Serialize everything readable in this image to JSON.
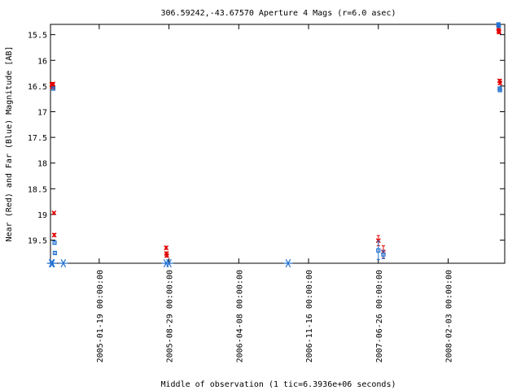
{
  "chart_data": {
    "type": "scatter",
    "title": "306.59242,-43.67570   Aperture 4 Mags (r=6.0 asec)",
    "xlabel": "Middle of observation (1 tic=6.3936e+06 seconds)",
    "ylabel": "Near (Red) and Far (Blue) Magnitude [AB]",
    "y_inverted": true,
    "ylim": [
      19.95,
      15.3
    ],
    "xlim": [
      "2004-08-17",
      "2008-08-01"
    ],
    "y_ticks": [
      "15.5",
      "16",
      "16.5",
      "17",
      "17.5",
      "18",
      "18.5",
      "19",
      "19.5"
    ],
    "x_ticks": [
      {
        "date": "2005-01-19",
        "label": "2005-01-19 00:00:00"
      },
      {
        "date": "2005-08-29",
        "label": "2005-08-29 00:00:00"
      },
      {
        "date": "2006-04-08",
        "label": "2006-04-08 00:00:00"
      },
      {
        "date": "2006-11-16",
        "label": "2006-11-16 00:00:00"
      },
      {
        "date": "2007-06-26",
        "label": "2007-06-26 00:00:00"
      },
      {
        "date": "2008-02-03",
        "label": "2008-02-03 00:00:00"
      }
    ],
    "grid": false,
    "series": [
      {
        "color": "#e00000",
        "marker": "x",
        "points": [
          {
            "x": "2004-08-21",
            "y": 16.47,
            "err": 0.03
          },
          {
            "x": "2004-08-22",
            "y": 16.5,
            "err": 0.03
          },
          {
            "x": "2004-08-23",
            "y": 16.52,
            "err": 0.03
          },
          {
            "x": "2004-08-24",
            "y": 16.48,
            "err": 0.03
          },
          {
            "x": "2004-08-25",
            "y": 16.46,
            "err": 0.03
          },
          {
            "x": "2004-08-28",
            "y": 18.97,
            "err": 0.02
          },
          {
            "x": "2004-08-29",
            "y": 19.4,
            "err": 0.03
          },
          {
            "x": "2005-08-20",
            "y": 19.65,
            "err": 0.03
          },
          {
            "x": "2005-08-21",
            "y": 19.76,
            "err": 0.03
          },
          {
            "x": "2005-08-22",
            "y": 19.8,
            "err": 0.03
          },
          {
            "x": "2007-06-26",
            "y": 19.51,
            "err": 0.1
          },
          {
            "x": "2007-07-12",
            "y": 19.73,
            "err": 0.12
          },
          {
            "x": "2008-07-12",
            "y": 15.38,
            "err": 0.03
          },
          {
            "x": "2008-07-13",
            "y": 15.42,
            "err": 0.03
          },
          {
            "x": "2008-07-14",
            "y": 15.45,
            "err": 0.03
          },
          {
            "x": "2008-07-16",
            "y": 16.4,
            "err": 0.03
          },
          {
            "x": "2008-07-17",
            "y": 16.44,
            "err": 0.03
          }
        ]
      },
      {
        "color": "#2070d0",
        "marker": "square",
        "points": [
          {
            "x": "2004-08-26",
            "y": 16.55,
            "err": 0.03
          },
          {
            "x": "2004-08-30",
            "y": 19.55,
            "err": 0.03
          },
          {
            "x": "2004-08-31",
            "y": 19.75,
            "err": 0.03
          },
          {
            "x": "2007-06-26",
            "y": 19.7,
            "err": 0.18
          },
          {
            "x": "2007-07-12",
            "y": 19.78,
            "err": 0.08
          },
          {
            "x": "2008-07-12",
            "y": 15.3,
            "err": 0.02
          },
          {
            "x": "2008-07-13",
            "y": 15.33,
            "err": 0.02
          },
          {
            "x": "2008-07-16",
            "y": 16.55,
            "err": 0.03
          },
          {
            "x": "2008-07-17",
            "y": 16.58,
            "err": 0.03
          }
        ]
      },
      {
        "color": "#2070d0",
        "marker": "asterisk",
        "points": [
          {
            "x": "2004-08-20",
            "y": 19.95
          },
          {
            "x": "2004-08-23",
            "y": 19.95
          },
          {
            "x": "2004-09-27",
            "y": 19.95
          },
          {
            "x": "2005-08-20",
            "y": 19.95
          },
          {
            "x": "2005-08-29",
            "y": 19.95
          },
          {
            "x": "2006-09-12",
            "y": 19.95
          }
        ]
      }
    ]
  }
}
